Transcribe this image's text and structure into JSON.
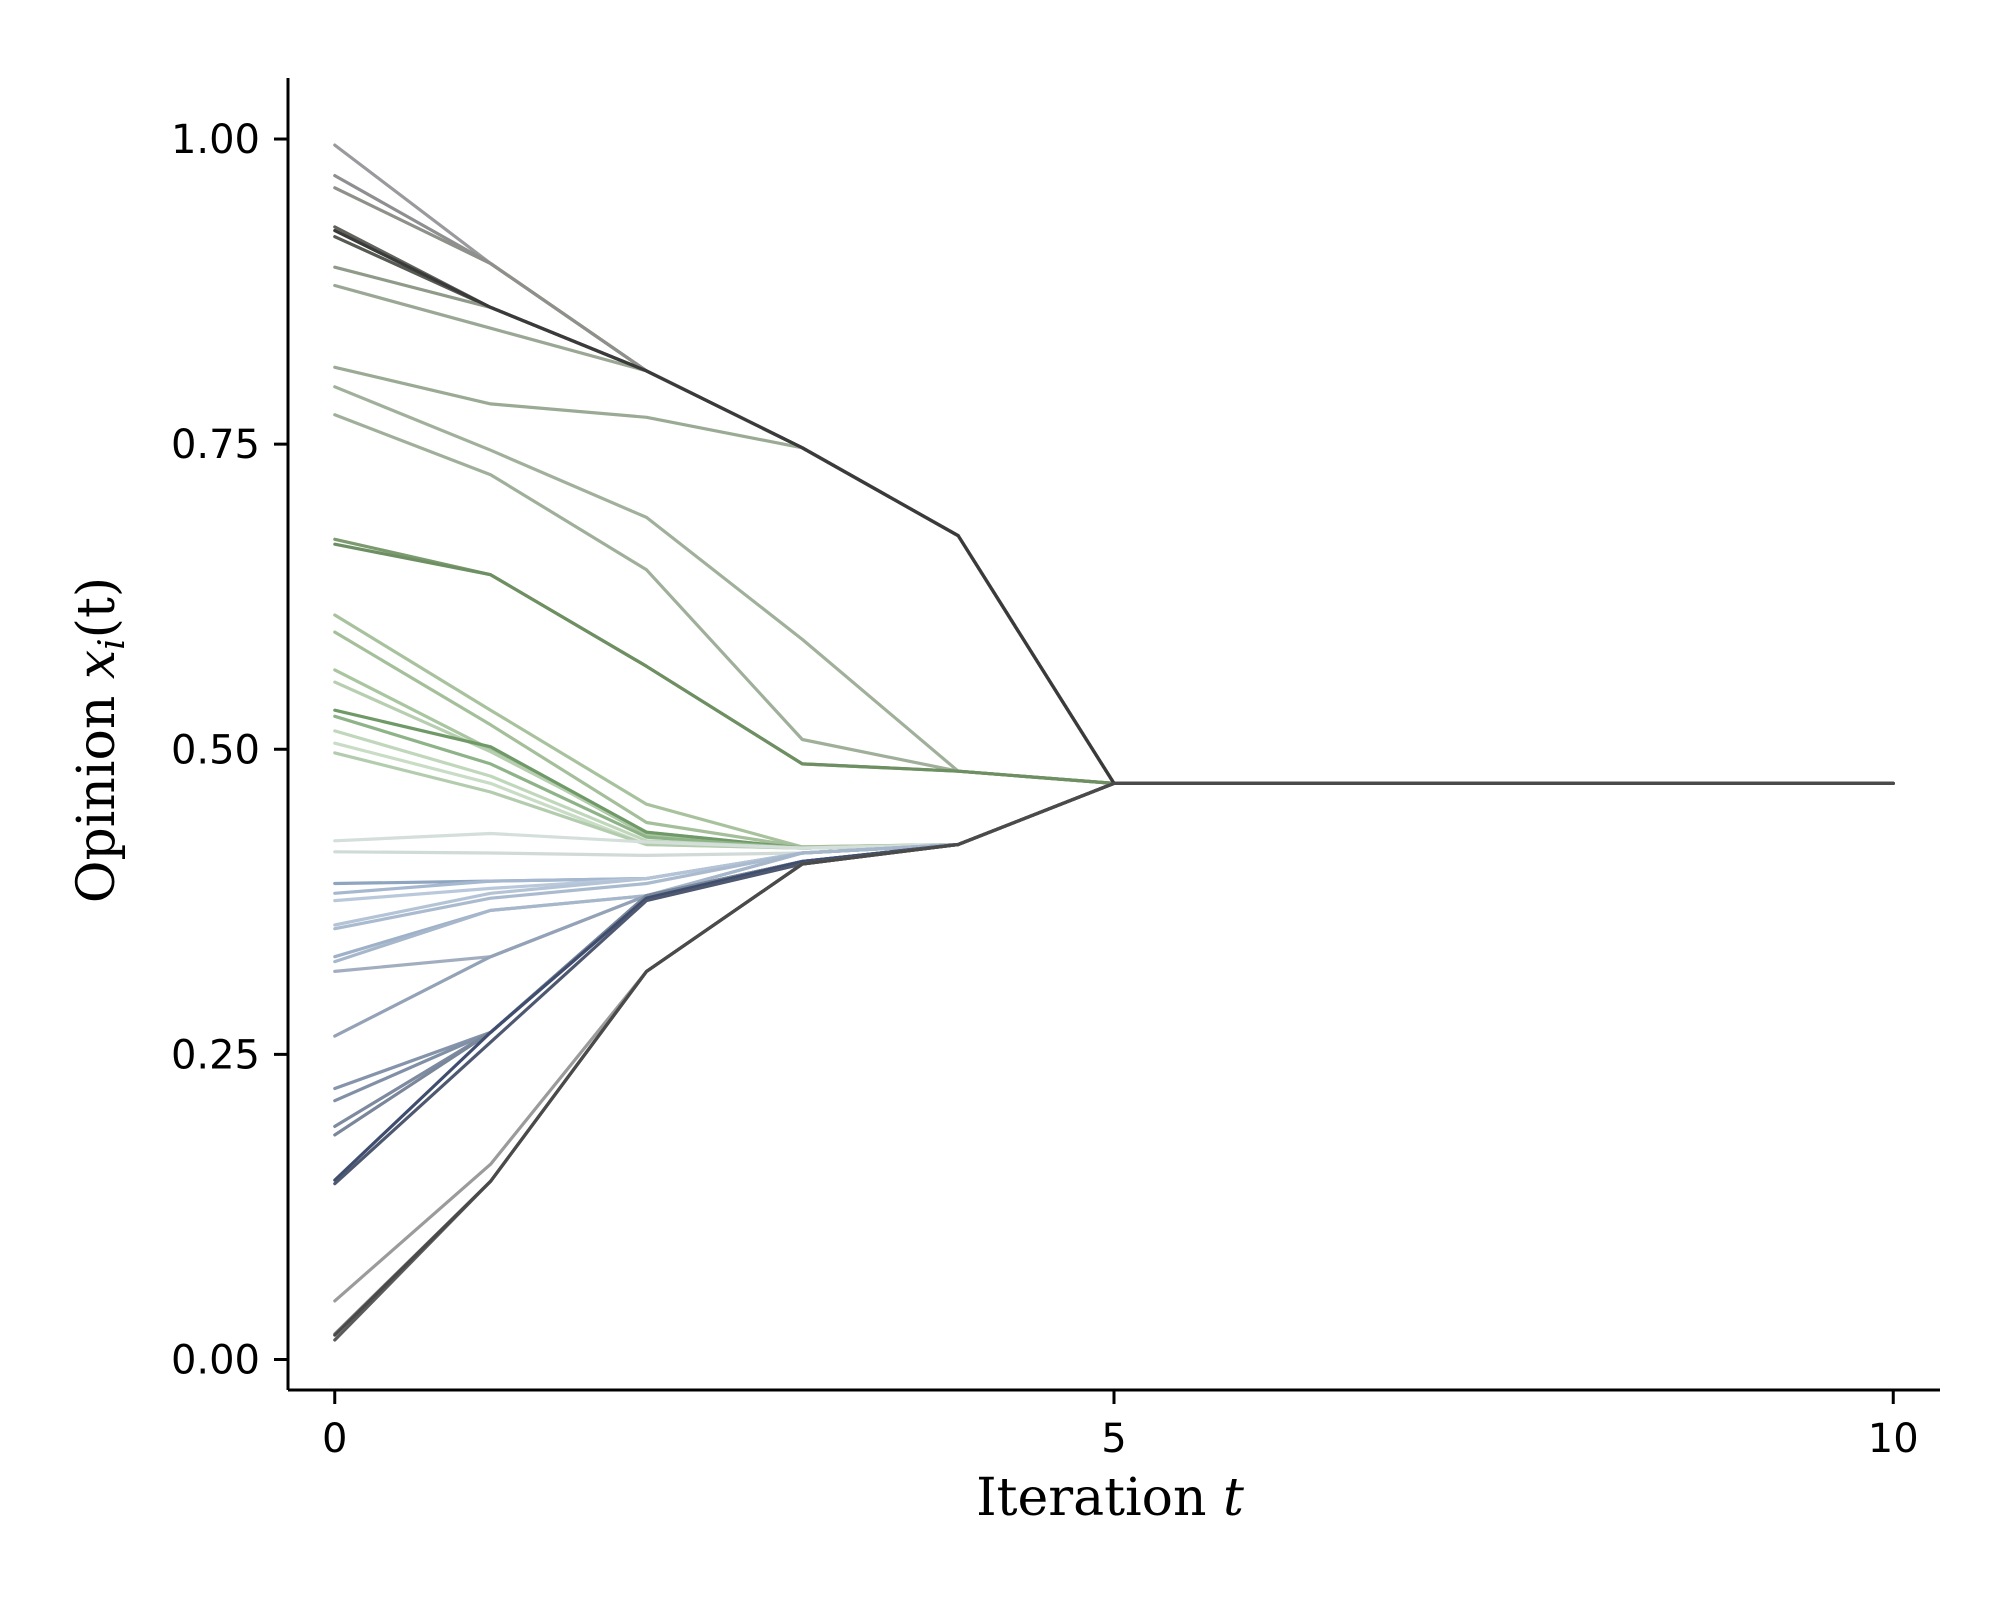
{
  "chart_data": {
    "type": "line",
    "title": "",
    "xlabel_main": "Iteration ",
    "xlabel_var": "t",
    "ylabel_main": "Opinion ",
    "ylabel_var": "x",
    "ylabel_sub": "i",
    "ylabel_tail": "(t)",
    "xlim": [
      -0.3,
      10.3
    ],
    "ylim": [
      -0.025,
      1.05
    ],
    "xticks": [
      0,
      5,
      10
    ],
    "xtick_labels": [
      "0",
      "5",
      "10"
    ],
    "yticks": [
      0,
      0.25,
      0.5,
      0.75,
      1.0
    ],
    "ytick_labels": [
      "0.00",
      "0.25",
      "0.50",
      "0.75",
      "1.00"
    ],
    "grid": false,
    "x": [
      0,
      1,
      2,
      3,
      4,
      5,
      6,
      7,
      8,
      9,
      10
    ],
    "series": [
      {
        "color": "#9a9a9e",
        "values": [
          0.995,
          0.898,
          0.81,
          0.747,
          0.675,
          0.472,
          0.472,
          0.472,
          0.472,
          0.472,
          0.472
        ]
      },
      {
        "color": "#8f8f92",
        "values": [
          0.97,
          0.898,
          0.81,
          0.747,
          0.675,
          0.472,
          0.472,
          0.472,
          0.472,
          0.472,
          0.472
        ]
      },
      {
        "color": "#8d918a",
        "values": [
          0.96,
          0.898,
          0.81,
          0.747,
          0.675,
          0.472,
          0.472,
          0.472,
          0.472,
          0.472,
          0.472
        ]
      },
      {
        "color": "#5f635c",
        "values": [
          0.928,
          0.862,
          0.81,
          0.747,
          0.675,
          0.472,
          0.472,
          0.472,
          0.472,
          0.472,
          0.472
        ]
      },
      {
        "color": "#555a52",
        "values": [
          0.92,
          0.862,
          0.81,
          0.747,
          0.675,
          0.472,
          0.472,
          0.472,
          0.472,
          0.472,
          0.472
        ]
      },
      {
        "color": "#8f9a89",
        "values": [
          0.895,
          0.862,
          0.81,
          0.747,
          0.675,
          0.472,
          0.472,
          0.472,
          0.472,
          0.472,
          0.472
        ]
      },
      {
        "color": "#9aa795",
        "values": [
          0.88,
          0.845,
          0.81,
          0.747,
          0.675,
          0.472,
          0.472,
          0.472,
          0.472,
          0.472,
          0.472
        ]
      },
      {
        "color": "#9aaa94",
        "values": [
          0.813,
          0.783,
          0.772,
          0.747,
          0.675,
          0.472,
          0.472,
          0.472,
          0.472,
          0.472,
          0.472
        ]
      },
      {
        "color": "#a1b09b",
        "values": [
          0.797,
          0.745,
          0.69,
          0.59,
          0.482,
          0.472,
          0.472,
          0.472,
          0.472,
          0.472,
          0.472
        ]
      },
      {
        "color": "#a0af9a",
        "values": [
          0.774,
          0.725,
          0.647,
          0.508,
          0.482,
          0.472,
          0.472,
          0.472,
          0.472,
          0.472,
          0.472
        ]
      },
      {
        "color": "#7c9a70",
        "values": [
          0.672,
          0.643,
          0.568,
          0.488,
          0.482,
          0.472,
          0.472,
          0.472,
          0.472,
          0.472,
          0.472
        ]
      },
      {
        "color": "#6d8f62",
        "values": [
          0.668,
          0.643,
          0.568,
          0.488,
          0.482,
          0.472,
          0.472,
          0.472,
          0.472,
          0.472,
          0.472
        ]
      },
      {
        "color": "#a8c29e",
        "values": [
          0.61,
          0.532,
          0.455,
          0.42,
          0.422,
          0.472,
          0.472,
          0.472,
          0.472,
          0.472,
          0.472
        ]
      },
      {
        "color": "#a4bf9a",
        "values": [
          0.596,
          0.52,
          0.44,
          0.42,
          0.422,
          0.472,
          0.472,
          0.472,
          0.472,
          0.472,
          0.472
        ]
      },
      {
        "color": "#a9c6a0",
        "values": [
          0.565,
          0.5,
          0.43,
          0.419,
          0.422,
          0.472,
          0.472,
          0.472,
          0.472,
          0.472,
          0.472
        ]
      },
      {
        "color": "#b7cfb0",
        "values": [
          0.555,
          0.498,
          0.432,
          0.419,
          0.422,
          0.472,
          0.472,
          0.472,
          0.472,
          0.472,
          0.472
        ]
      },
      {
        "color": "#6f9a68",
        "values": [
          0.532,
          0.502,
          0.432,
          0.419,
          0.422,
          0.472,
          0.472,
          0.472,
          0.472,
          0.472,
          0.472
        ]
      },
      {
        "color": "#8fb388",
        "values": [
          0.527,
          0.488,
          0.428,
          0.419,
          0.422,
          0.472,
          0.472,
          0.472,
          0.472,
          0.472,
          0.472
        ]
      },
      {
        "color": "#c0d7bc",
        "values": [
          0.515,
          0.478,
          0.425,
          0.419,
          0.422,
          0.472,
          0.472,
          0.472,
          0.472,
          0.472,
          0.472
        ]
      },
      {
        "color": "#c9dcc6",
        "values": [
          0.505,
          0.472,
          0.422,
          0.419,
          0.422,
          0.472,
          0.472,
          0.472,
          0.472,
          0.472,
          0.472
        ]
      },
      {
        "color": "#b3ccae",
        "values": [
          0.497,
          0.465,
          0.422,
          0.419,
          0.422,
          0.472,
          0.472,
          0.472,
          0.472,
          0.472,
          0.472
        ]
      },
      {
        "color": "#d4deda",
        "values": [
          0.425,
          0.431,
          0.424,
          0.419,
          0.422,
          0.472,
          0.472,
          0.472,
          0.472,
          0.472,
          0.472
        ]
      },
      {
        "color": "#d0dad7",
        "values": [
          0.416,
          0.415,
          0.413,
          0.415,
          0.422,
          0.472,
          0.472,
          0.472,
          0.472,
          0.472,
          0.472
        ]
      },
      {
        "color": "#8ea5c0",
        "values": [
          0.39,
          0.392,
          0.394,
          0.415,
          0.422,
          0.472,
          0.472,
          0.472,
          0.472,
          0.472,
          0.472
        ]
      },
      {
        "color": "#a6b8cf",
        "values": [
          0.382,
          0.392,
          0.394,
          0.415,
          0.422,
          0.472,
          0.472,
          0.472,
          0.472,
          0.472,
          0.472
        ]
      },
      {
        "color": "#b9c9db",
        "values": [
          0.376,
          0.386,
          0.394,
          0.415,
          0.422,
          0.472,
          0.472,
          0.472,
          0.472,
          0.472,
          0.472
        ]
      },
      {
        "color": "#b4c4d6",
        "values": [
          0.356,
          0.382,
          0.394,
          0.415,
          0.422,
          0.472,
          0.472,
          0.472,
          0.472,
          0.472,
          0.472
        ]
      },
      {
        "color": "#aabbd0",
        "values": [
          0.353,
          0.378,
          0.39,
          0.415,
          0.422,
          0.472,
          0.472,
          0.472,
          0.472,
          0.472,
          0.472
        ]
      },
      {
        "color": "#9eb1c8",
        "values": [
          0.33,
          0.368,
          0.38,
          0.415,
          0.422,
          0.472,
          0.472,
          0.472,
          0.472,
          0.472,
          0.472
        ]
      },
      {
        "color": "#a7b7cb",
        "values": [
          0.326,
          0.368,
          0.38,
          0.415,
          0.422,
          0.472,
          0.472,
          0.472,
          0.472,
          0.472,
          0.472
        ]
      },
      {
        "color": "#a2aec0",
        "values": [
          0.318,
          0.33,
          0.38,
          0.408,
          0.422,
          0.472,
          0.472,
          0.472,
          0.472,
          0.472,
          0.472
        ]
      },
      {
        "color": "#93a2b6",
        "values": [
          0.265,
          0.33,
          0.38,
          0.408,
          0.422,
          0.472,
          0.472,
          0.472,
          0.472,
          0.472,
          0.472
        ]
      },
      {
        "color": "#8594ab",
        "values": [
          0.222,
          0.268,
          0.38,
          0.408,
          0.422,
          0.472,
          0.472,
          0.472,
          0.472,
          0.472,
          0.472
        ]
      },
      {
        "color": "#8190a6",
        "values": [
          0.212,
          0.268,
          0.38,
          0.408,
          0.422,
          0.472,
          0.472,
          0.472,
          0.472,
          0.472,
          0.472
        ]
      },
      {
        "color": "#7d8aa0",
        "values": [
          0.191,
          0.268,
          0.38,
          0.408,
          0.422,
          0.472,
          0.472,
          0.472,
          0.472,
          0.472,
          0.472
        ]
      },
      {
        "color": "#7a8699",
        "values": [
          0.184,
          0.268,
          0.38,
          0.408,
          0.422,
          0.472,
          0.472,
          0.472,
          0.472,
          0.472,
          0.472
        ]
      },
      {
        "color": "#3f4d6e",
        "values": [
          0.147,
          0.268,
          0.378,
          0.408,
          0.422,
          0.472,
          0.472,
          0.472,
          0.472,
          0.472,
          0.472
        ]
      },
      {
        "color": "#4e5870",
        "values": [
          0.144,
          0.26,
          0.376,
          0.406,
          0.422,
          0.472,
          0.472,
          0.472,
          0.472,
          0.472,
          0.472
        ]
      },
      {
        "color": "#9b9b9b",
        "values": [
          0.048,
          0.16,
          0.318,
          0.406,
          0.422,
          0.472,
          0.472,
          0.472,
          0.472,
          0.472,
          0.472
        ]
      },
      {
        "color": "#8e8e8e",
        "values": [
          0.021,
          0.146,
          0.318,
          0.406,
          0.422,
          0.472,
          0.472,
          0.472,
          0.472,
          0.472,
          0.472
        ]
      },
      {
        "color": "#5a5a5a",
        "values": [
          0.016,
          0.146,
          0.318,
          0.406,
          0.422,
          0.472,
          0.472,
          0.472,
          0.472,
          0.472,
          0.472
        ]
      },
      {
        "color": "#3a3a3a",
        "values": [
          0.925,
          0.862,
          0.81,
          0.747,
          0.675,
          0.472,
          0.472,
          0.472,
          0.472,
          0.472,
          0.472
        ]
      },
      {
        "color": "#4a4a4a",
        "values": [
          0.02,
          0.146,
          0.318,
          0.406,
          0.422,
          0.472,
          0.472,
          0.472,
          0.472,
          0.472,
          0.472
        ]
      }
    ]
  }
}
